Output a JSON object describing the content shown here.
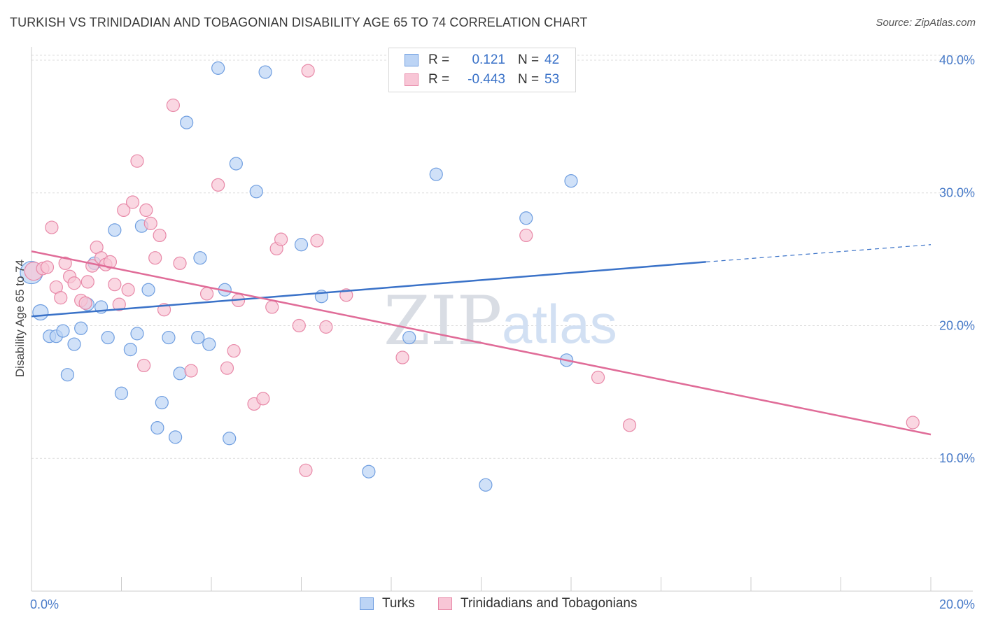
{
  "title": "TURKISH VS TRINIDADIAN AND TOBAGONIAN DISABILITY AGE 65 TO 74 CORRELATION CHART",
  "source": "Source: ZipAtlas.com",
  "legend": {
    "rows": [
      {
        "r_label": "R =",
        "r_value": "0.121",
        "n_label": "N =",
        "n_value": "42"
      },
      {
        "r_label": "R =",
        "r_value": "-0.443",
        "n_label": "N =",
        "n_value": "53"
      }
    ]
  },
  "bottom_legend": [
    "Turks",
    "Trinidadians and Tobagonians"
  ],
  "watermark": {
    "zip": "ZIP",
    "atlas": "atlas"
  },
  "colors": {
    "turks_fill": "#bcd4f5",
    "turks_stroke": "#6f9ee0",
    "turks_line": "#3a72c8",
    "trini_fill": "#f8c6d6",
    "trini_stroke": "#e889a8",
    "trini_line": "#e06c98",
    "grid": "#dcdcdc",
    "tick_text": "#4a7cc9"
  },
  "chart_data": {
    "type": "scatter",
    "title": "TURKISH VS TRINIDADIAN AND TOBAGONIAN DISABILITY AGE 65 TO 74 CORRELATION CHART",
    "xlabel": "",
    "ylabel": "Disability Age 65 to 74",
    "xlim": [
      0.0,
      20.0
    ],
    "ylim": [
      0.0,
      41.0
    ],
    "x_tick_labels": [
      "0.0%",
      "20.0%"
    ],
    "y_ticks": [
      10.0,
      20.0,
      30.0,
      40.0
    ],
    "y_tick_labels": [
      "10.0%",
      "20.0%",
      "30.0%",
      "40.0%"
    ],
    "grid": true,
    "legend_position": "top-center",
    "series": [
      {
        "name": "Turks",
        "R": 0.121,
        "N": 42,
        "trend": {
          "x": [
            0.0,
            15.0
          ],
          "y": [
            20.7,
            24.8
          ],
          "dashed_to": [
            20.0,
            26.1
          ]
        },
        "points": [
          [
            0.0,
            24.0,
            16
          ],
          [
            0.2,
            21.0,
            11
          ],
          [
            0.4,
            19.2,
            9
          ],
          [
            0.55,
            19.2,
            9
          ],
          [
            0.7,
            19.6,
            9
          ],
          [
            0.8,
            16.3,
            9
          ],
          [
            0.95,
            18.6,
            9
          ],
          [
            1.1,
            19.8,
            9
          ],
          [
            1.25,
            21.6,
            9
          ],
          [
            1.4,
            24.7,
            9
          ],
          [
            1.55,
            21.4,
            9
          ],
          [
            1.7,
            19.1,
            9
          ],
          [
            1.85,
            27.2,
            9
          ],
          [
            2.0,
            14.9,
            9
          ],
          [
            2.2,
            18.2,
            9
          ],
          [
            2.35,
            19.4,
            9
          ],
          [
            2.45,
            27.5,
            9
          ],
          [
            2.6,
            22.7,
            9
          ],
          [
            2.8,
            12.3,
            9
          ],
          [
            2.9,
            14.2,
            9
          ],
          [
            3.05,
            19.1,
            9
          ],
          [
            3.2,
            11.6,
            9
          ],
          [
            3.3,
            16.4,
            9
          ],
          [
            3.45,
            35.3,
            9
          ],
          [
            3.7,
            19.1,
            9
          ],
          [
            3.75,
            25.1,
            9
          ],
          [
            3.95,
            18.6,
            9
          ],
          [
            4.15,
            39.4,
            9
          ],
          [
            4.3,
            22.7,
            9
          ],
          [
            4.4,
            11.5,
            9
          ],
          [
            4.55,
            32.2,
            9
          ],
          [
            5.0,
            30.1,
            9
          ],
          [
            5.2,
            39.1,
            9
          ],
          [
            6.0,
            26.1,
            9
          ],
          [
            6.45,
            22.2,
            9
          ],
          [
            7.5,
            9.0,
            9
          ],
          [
            8.4,
            19.1,
            9
          ],
          [
            9.0,
            31.4,
            9
          ],
          [
            10.1,
            8.0,
            9
          ],
          [
            11.0,
            28.1,
            9
          ],
          [
            12.0,
            30.9,
            9
          ],
          [
            11.9,
            17.4,
            9
          ]
        ]
      },
      {
        "name": "Trinidadians and Tobagonians",
        "R": -0.443,
        "N": 53,
        "trend": {
          "x": [
            0.0,
            20.0
          ],
          "y": [
            25.6,
            11.8
          ]
        },
        "points": [
          [
            0.05,
            24.1,
            13
          ],
          [
            0.25,
            24.3,
            9
          ],
          [
            0.35,
            24.4,
            9
          ],
          [
            0.45,
            27.4,
            9
          ],
          [
            0.55,
            22.9,
            9
          ],
          [
            0.65,
            22.1,
            9
          ],
          [
            0.75,
            24.7,
            9
          ],
          [
            0.85,
            23.7,
            9
          ],
          [
            0.95,
            23.2,
            9
          ],
          [
            1.1,
            21.9,
            9
          ],
          [
            1.2,
            21.7,
            9
          ],
          [
            1.25,
            23.3,
            9
          ],
          [
            1.35,
            24.5,
            9
          ],
          [
            1.45,
            25.9,
            9
          ],
          [
            1.55,
            25.1,
            9
          ],
          [
            1.65,
            24.6,
            9
          ],
          [
            1.75,
            24.8,
            9
          ],
          [
            1.85,
            23.1,
            9
          ],
          [
            1.95,
            21.6,
            9
          ],
          [
            2.05,
            28.7,
            9
          ],
          [
            2.15,
            22.7,
            9
          ],
          [
            2.25,
            29.3,
            9
          ],
          [
            2.35,
            32.4,
            9
          ],
          [
            2.5,
            17.0,
            9
          ],
          [
            2.55,
            28.7,
            9
          ],
          [
            2.65,
            27.7,
            9
          ],
          [
            2.75,
            25.1,
            9
          ],
          [
            2.85,
            26.8,
            9
          ],
          [
            2.95,
            21.2,
            9
          ],
          [
            3.15,
            36.6,
            9
          ],
          [
            3.3,
            24.7,
            9
          ],
          [
            3.55,
            16.6,
            9
          ],
          [
            3.9,
            22.4,
            9
          ],
          [
            4.15,
            30.6,
            9
          ],
          [
            4.35,
            16.8,
            9
          ],
          [
            4.5,
            18.1,
            9
          ],
          [
            4.6,
            21.9,
            9
          ],
          [
            4.95,
            14.1,
            9
          ],
          [
            5.15,
            14.5,
            9
          ],
          [
            5.35,
            21.4,
            9
          ],
          [
            5.45,
            25.8,
            9
          ],
          [
            5.55,
            26.5,
            9
          ],
          [
            5.95,
            20.0,
            9
          ],
          [
            6.1,
            9.1,
            9
          ],
          [
            6.15,
            39.2,
            9
          ],
          [
            6.35,
            26.4,
            9
          ],
          [
            6.55,
            19.9,
            9
          ],
          [
            7.0,
            22.3,
            9
          ],
          [
            8.25,
            17.6,
            9
          ],
          [
            11.0,
            26.8,
            9
          ],
          [
            12.6,
            16.1,
            9
          ],
          [
            13.3,
            12.5,
            9
          ],
          [
            19.6,
            12.7,
            9
          ]
        ]
      }
    ]
  }
}
